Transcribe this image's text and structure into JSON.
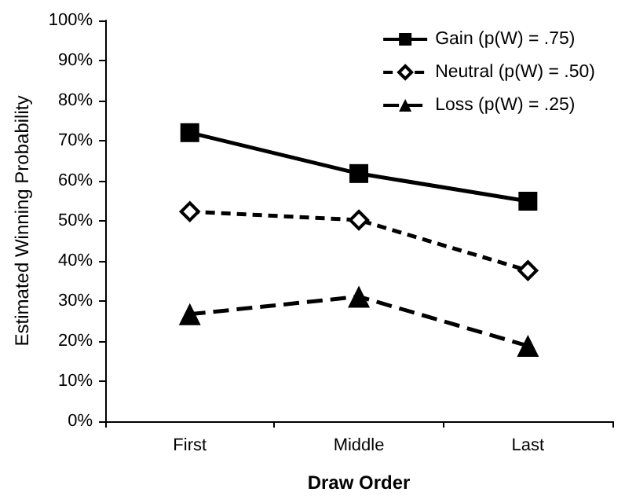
{
  "chart_data": {
    "type": "line",
    "xlabel": "Draw Order",
    "ylabel": "Estimated Winning Probability",
    "categories": [
      "First",
      "Middle",
      "Last"
    ],
    "series": [
      {
        "name": "Gain (p(W) = .75)",
        "color": "#000000",
        "values": [
          72,
          61.8,
          54.9
        ],
        "marker": "square",
        "line_style": "solid"
      },
      {
        "name": "Neutral (p(W) = .50)",
        "color": "#000000",
        "values": [
          52.3,
          50.2,
          37.6
        ],
        "marker": "diamond",
        "line_style": "dashed"
      },
      {
        "name": "Loss (p(W) = .25)",
        "color": "#000000",
        "values": [
          26.7,
          31.1,
          18.8
        ],
        "marker": "triangle",
        "line_style": "dashed"
      }
    ],
    "ylim": [
      0,
      100
    ],
    "yticks": [
      {
        "value": 0,
        "label": "0%"
      },
      {
        "value": 10,
        "label": "10%"
      },
      {
        "value": 20,
        "label": "20%"
      },
      {
        "value": 30,
        "label": "30%"
      },
      {
        "value": 40,
        "label": "40%"
      },
      {
        "value": 50,
        "label": "50%"
      },
      {
        "value": 60,
        "label": "60%"
      },
      {
        "value": 70,
        "label": "70%"
      },
      {
        "value": 80,
        "label": "80%"
      },
      {
        "value": 90,
        "label": "90%"
      },
      {
        "value": 100,
        "label": "100%"
      }
    ],
    "grid": false,
    "legend": "top right"
  }
}
